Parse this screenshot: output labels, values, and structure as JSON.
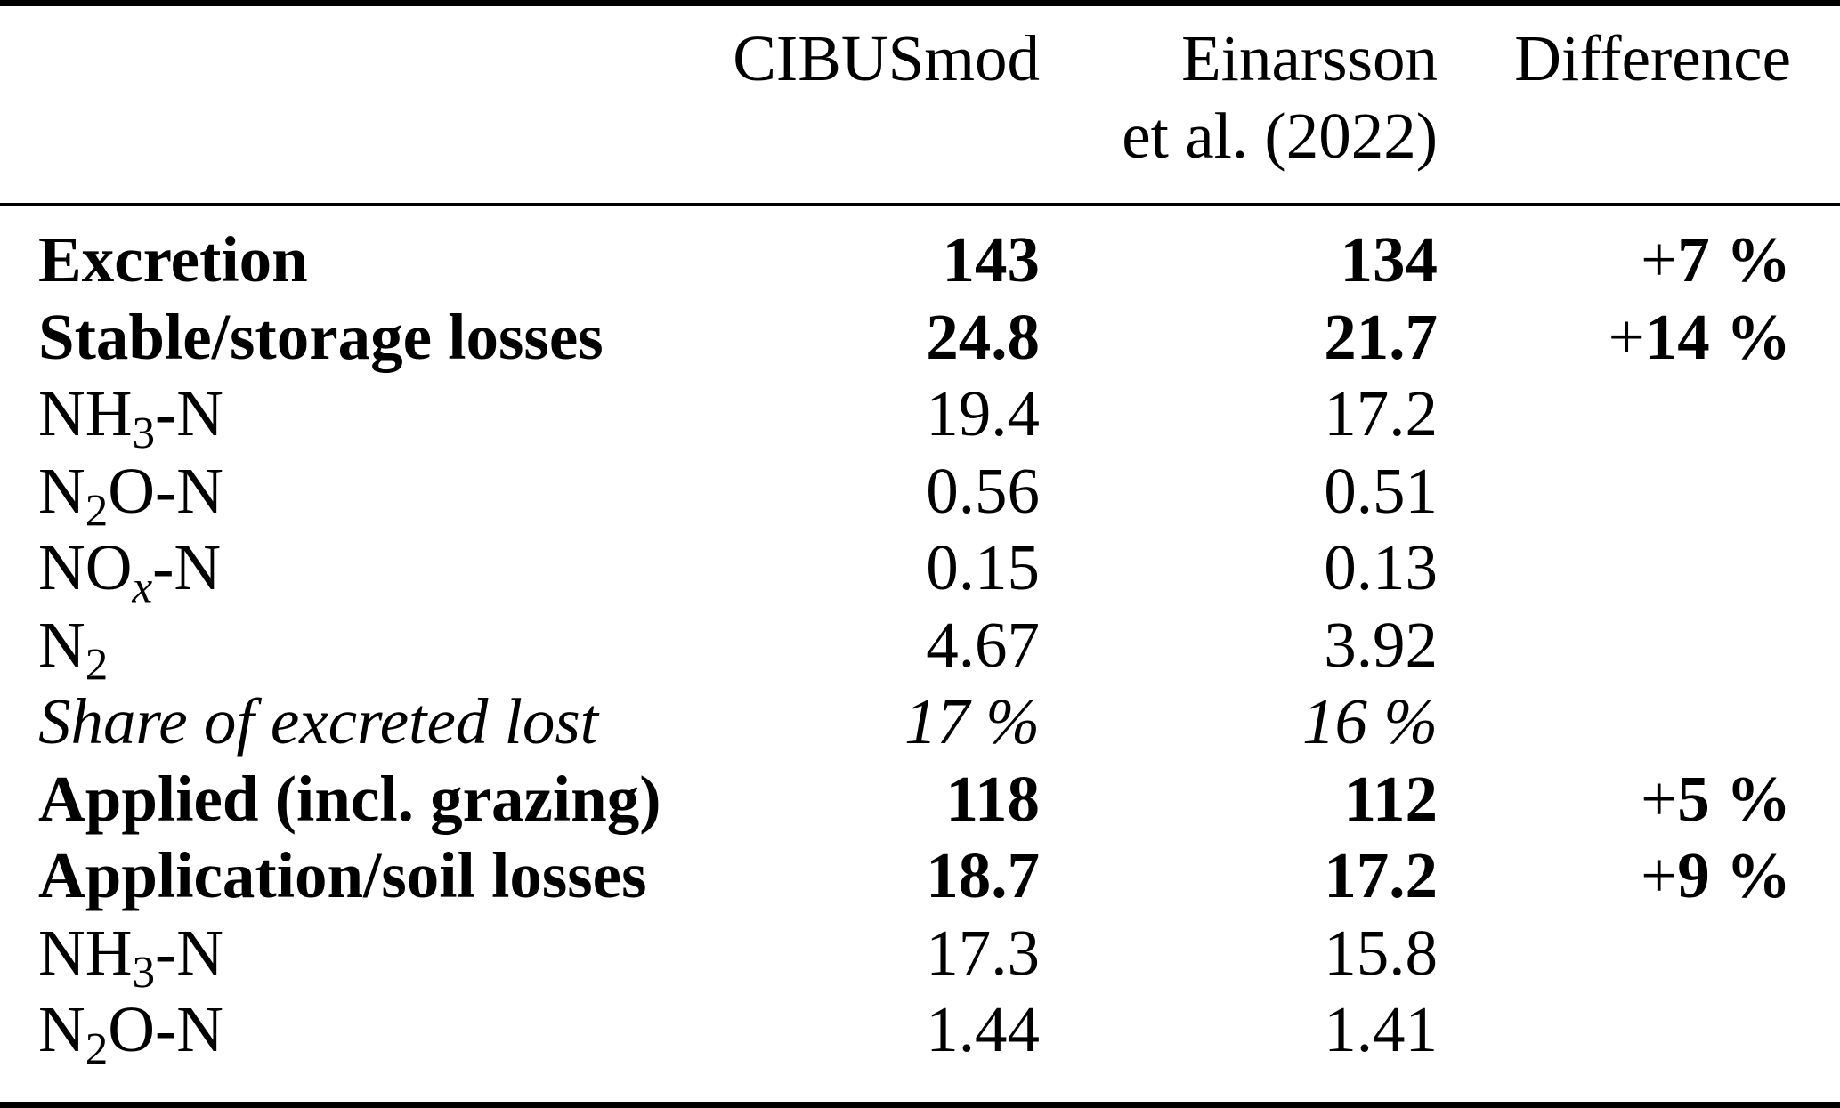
{
  "colors": {
    "background": "#ffffff",
    "text": "#000000",
    "rule": "#000000"
  },
  "table": {
    "header": {
      "label": "",
      "cibusmod": "CIBUSmod",
      "einarsson_line1": "Einarsson",
      "einarsson_line2": "et al. (2022)",
      "difference": "Difference"
    },
    "rows": [
      {
        "label": "Excretion",
        "bold": true,
        "cibusmod": "143",
        "einarsson": "134",
        "diff_sign": "+",
        "diff_value": "7 %"
      },
      {
        "label": "Stable/storage losses",
        "bold": true,
        "cibusmod": "24.8",
        "einarsson": "21.7",
        "diff_sign": "+",
        "diff_value": "14 %"
      },
      {
        "label_main": "NH",
        "label_sub": "3",
        "label_tail": "-N",
        "cibusmod": "19.4",
        "einarsson": "17.2"
      },
      {
        "label_main": "N",
        "label_sub": "2",
        "label_tail": "O-N",
        "cibusmod": "0.56",
        "einarsson": "0.51"
      },
      {
        "label_main": "NO",
        "label_sub": "x",
        "label_tail": "-N",
        "cibusmod": "0.15",
        "einarsson": "0.13"
      },
      {
        "label_main": "N",
        "label_sub": "2",
        "label_tail": "",
        "cibusmod": "4.67",
        "einarsson": "3.92"
      },
      {
        "label": "Share of excreted lost",
        "italic": true,
        "cibusmod": "17 %",
        "einarsson": "16 %"
      },
      {
        "label": "Applied (incl. grazing)",
        "bold": true,
        "cibusmod": "118",
        "einarsson": "112",
        "diff_sign": "+",
        "diff_value": "5 %"
      },
      {
        "label": "Application/soil losses",
        "bold": true,
        "cibusmod": "18.7",
        "einarsson": "17.2",
        "diff_sign": "+",
        "diff_value": "9 %"
      },
      {
        "label_main": "NH",
        "label_sub": "3",
        "label_tail": "-N",
        "cibusmod": "17.3",
        "einarsson": "15.8"
      },
      {
        "label_main": "N",
        "label_sub": "2",
        "label_tail": "O-N",
        "cibusmod": "1.44",
        "einarsson": "1.41"
      }
    ]
  }
}
